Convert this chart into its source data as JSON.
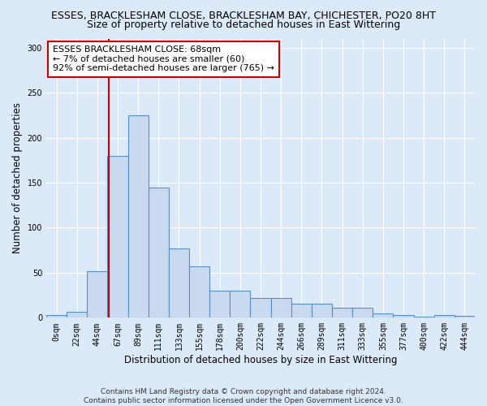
{
  "title_line1": "ESSES, BRACKLESHAM CLOSE, BRACKLESHAM BAY, CHICHESTER, PO20 8HT",
  "title_line2": "Size of property relative to detached houses in East Wittering",
  "xlabel": "Distribution of detached houses by size in East Wittering",
  "ylabel": "Number of detached properties",
  "footer": "Contains HM Land Registry data © Crown copyright and database right 2024.\nContains public sector information licensed under the Open Government Licence v3.0.",
  "bin_labels": [
    "0sqm",
    "22sqm",
    "44sqm",
    "67sqm",
    "89sqm",
    "111sqm",
    "133sqm",
    "155sqm",
    "178sqm",
    "200sqm",
    "222sqm",
    "244sqm",
    "266sqm",
    "289sqm",
    "311sqm",
    "333sqm",
    "355sqm",
    "377sqm",
    "400sqm",
    "422sqm",
    "444sqm"
  ],
  "bar_heights": [
    3,
    7,
    52,
    180,
    225,
    145,
    77,
    57,
    30,
    30,
    22,
    22,
    16,
    16,
    11,
    11,
    5,
    3,
    1,
    3,
    2
  ],
  "bar_color": "#c9d9f0",
  "bar_edgecolor": "#5a8fc3",
  "bar_linewidth": 0.8,
  "grid_color": "#ffffff",
  "background_color": "#dce9f8",
  "annotation_text": "ESSES BRACKLESHAM CLOSE: 68sqm\n← 7% of detached houses are smaller (60)\n92% of semi-detached houses are larger (765) →",
  "annotation_box_color": "#ffffff",
  "annotation_box_edgecolor": "#cc0000",
  "ylim": [
    0,
    310
  ],
  "yticks": [
    0,
    50,
    100,
    150,
    200,
    250,
    300
  ],
  "title1_fontsize": 9,
  "title2_fontsize": 9,
  "annotation_fontsize": 8,
  "xlabel_fontsize": 8.5,
  "ylabel_fontsize": 8.5,
  "footer_fontsize": 6.5,
  "tick_fontsize": 7
}
